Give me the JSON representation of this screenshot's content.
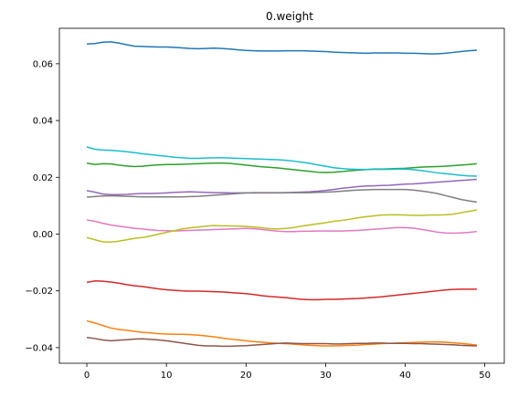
{
  "chart_data": {
    "type": "line",
    "title": "0.weight",
    "xlabel": "",
    "ylabel": "",
    "xlim": [
      -3.45,
      52.45
    ],
    "ylim": [
      -0.0455,
      0.0725
    ],
    "xticks": [
      0,
      10,
      20,
      30,
      40,
      50
    ],
    "yticks": [
      -0.04,
      -0.02,
      0.0,
      0.02,
      0.04,
      0.06
    ],
    "ytick_labels": [
      "−0.04",
      "−0.02",
      "0.00",
      "0.02",
      "0.04",
      "0.06"
    ],
    "grid": false,
    "legend": "none",
    "x": [
      0,
      1,
      2,
      3,
      4,
      5,
      6,
      7,
      8,
      9,
      10,
      11,
      12,
      13,
      14,
      15,
      16,
      17,
      18,
      19,
      20,
      21,
      22,
      23,
      24,
      25,
      26,
      27,
      28,
      29,
      30,
      31,
      32,
      33,
      34,
      35,
      36,
      37,
      38,
      39,
      40,
      41,
      42,
      43,
      44,
      45,
      46,
      47,
      48,
      49
    ],
    "series": [
      {
        "color": "#1f77b4",
        "values": [
          0.067,
          0.0671,
          0.0676,
          0.0677,
          0.0673,
          0.0667,
          0.0662,
          0.0661,
          0.066,
          0.0659,
          0.0659,
          0.0658,
          0.0656,
          0.0654,
          0.0653,
          0.0654,
          0.0655,
          0.0654,
          0.0652,
          0.0649,
          0.0647,
          0.0646,
          0.0645,
          0.0645,
          0.0645,
          0.0646,
          0.0646,
          0.0646,
          0.0645,
          0.0644,
          0.0643,
          0.0641,
          0.064,
          0.0639,
          0.0638,
          0.0637,
          0.0638,
          0.0638,
          0.0638,
          0.0638,
          0.0637,
          0.0637,
          0.0636,
          0.0635,
          0.0635,
          0.0637,
          0.064,
          0.0643,
          0.0646,
          0.0648
        ]
      },
      {
        "color": "#ff7f0e",
        "values": [
          -0.0306,
          -0.0313,
          -0.0322,
          -0.0331,
          -0.0336,
          -0.0339,
          -0.0343,
          -0.0346,
          -0.0348,
          -0.0351,
          -0.0352,
          -0.0353,
          -0.0353,
          -0.0354,
          -0.0356,
          -0.0359,
          -0.0362,
          -0.0366,
          -0.037,
          -0.0373,
          -0.0376,
          -0.0379,
          -0.0381,
          -0.0383,
          -0.0385,
          -0.0386,
          -0.0388,
          -0.039,
          -0.0392,
          -0.0393,
          -0.0394,
          -0.0394,
          -0.0393,
          -0.0392,
          -0.0391,
          -0.0389,
          -0.0388,
          -0.0386,
          -0.0385,
          -0.0384,
          -0.0383,
          -0.0382,
          -0.0381,
          -0.038,
          -0.038,
          -0.0381,
          -0.0383,
          -0.0385,
          -0.0388,
          -0.0391
        ]
      },
      {
        "color": "#2ca02c",
        "values": [
          0.025,
          0.0245,
          0.0248,
          0.0247,
          0.0243,
          0.024,
          0.0238,
          0.0239,
          0.0242,
          0.0244,
          0.0245,
          0.0245,
          0.0246,
          0.0247,
          0.0248,
          0.0249,
          0.025,
          0.025,
          0.0249,
          0.0246,
          0.0243,
          0.024,
          0.0237,
          0.0235,
          0.0233,
          0.023,
          0.0227,
          0.0224,
          0.0221,
          0.0218,
          0.0217,
          0.0218,
          0.022,
          0.0223,
          0.0225,
          0.0227,
          0.0229,
          0.0229,
          0.023,
          0.0231,
          0.0232,
          0.0234,
          0.0236,
          0.0237,
          0.0238,
          0.0239,
          0.0241,
          0.0243,
          0.0245,
          0.0248
        ]
      },
      {
        "color": "#d62728",
        "values": [
          -0.017,
          -0.0165,
          -0.0166,
          -0.0169,
          -0.0173,
          -0.0178,
          -0.0182,
          -0.0185,
          -0.0189,
          -0.0193,
          -0.0196,
          -0.0198,
          -0.02,
          -0.0201,
          -0.0201,
          -0.0202,
          -0.0203,
          -0.0204,
          -0.0206,
          -0.0208,
          -0.021,
          -0.0213,
          -0.0217,
          -0.022,
          -0.0222,
          -0.0224,
          -0.0227,
          -0.023,
          -0.0231,
          -0.0231,
          -0.023,
          -0.023,
          -0.0229,
          -0.0228,
          -0.0227,
          -0.0225,
          -0.0223,
          -0.0221,
          -0.0218,
          -0.0215,
          -0.0212,
          -0.0209,
          -0.0206,
          -0.0203,
          -0.02,
          -0.0197,
          -0.0195,
          -0.0194,
          -0.0194,
          -0.0194
        ]
      },
      {
        "color": "#9467bd",
        "values": [
          0.0153,
          0.0148,
          0.0141,
          0.0139,
          0.0139,
          0.014,
          0.0142,
          0.0143,
          0.0143,
          0.0144,
          0.0145,
          0.0147,
          0.0148,
          0.0149,
          0.0148,
          0.0147,
          0.0146,
          0.0146,
          0.0145,
          0.0145,
          0.0145,
          0.0145,
          0.0145,
          0.0145,
          0.0145,
          0.0146,
          0.0147,
          0.0148,
          0.0149,
          0.0151,
          0.0154,
          0.0157,
          0.0161,
          0.0164,
          0.0167,
          0.0169,
          0.017,
          0.0171,
          0.0172,
          0.0174,
          0.0176,
          0.0177,
          0.0179,
          0.0181,
          0.0183,
          0.0185,
          0.0187,
          0.0189,
          0.0191,
          0.0193
        ]
      },
      {
        "color": "#8c564b",
        "values": [
          -0.0364,
          -0.0368,
          -0.0373,
          -0.0376,
          -0.0374,
          -0.0372,
          -0.037,
          -0.0369,
          -0.0371,
          -0.0373,
          -0.0376,
          -0.038,
          -0.0384,
          -0.0388,
          -0.0392,
          -0.0394,
          -0.0394,
          -0.0395,
          -0.0395,
          -0.0394,
          -0.0393,
          -0.0391,
          -0.0389,
          -0.0387,
          -0.0385,
          -0.0384,
          -0.0385,
          -0.0386,
          -0.0386,
          -0.0386,
          -0.0386,
          -0.0387,
          -0.0387,
          -0.0386,
          -0.0385,
          -0.0385,
          -0.0384,
          -0.0384,
          -0.0385,
          -0.0385,
          -0.0385,
          -0.0386,
          -0.0386,
          -0.0387,
          -0.0388,
          -0.0389,
          -0.039,
          -0.0392,
          -0.0393,
          -0.0394
        ]
      },
      {
        "color": "#e377c2",
        "values": [
          0.005,
          0.0045,
          0.0038,
          0.0032,
          0.0028,
          0.0024,
          0.002,
          0.0018,
          0.0015,
          0.0013,
          0.0012,
          0.0011,
          0.0012,
          0.0013,
          0.0014,
          0.0015,
          0.0016,
          0.0017,
          0.0018,
          0.0019,
          0.002,
          0.0019,
          0.0016,
          0.0013,
          0.001,
          0.0009,
          0.0009,
          0.001,
          0.001,
          0.0011,
          0.0011,
          0.0011,
          0.0011,
          0.0012,
          0.0013,
          0.0015,
          0.0017,
          0.0019,
          0.0021,
          0.0023,
          0.0023,
          0.0021,
          0.0017,
          0.0012,
          0.0007,
          0.0004,
          0.0003,
          0.0004,
          0.0006,
          0.0009
        ]
      },
      {
        "color": "#7f7f7f",
        "values": [
          0.013,
          0.0132,
          0.0134,
          0.0135,
          0.0134,
          0.0133,
          0.0132,
          0.0131,
          0.0131,
          0.0131,
          0.0131,
          0.0131,
          0.0131,
          0.0132,
          0.0133,
          0.0135,
          0.0137,
          0.0139,
          0.0141,
          0.0143,
          0.0145,
          0.0146,
          0.0146,
          0.0146,
          0.0146,
          0.0146,
          0.0146,
          0.0146,
          0.0146,
          0.0147,
          0.0148,
          0.0149,
          0.0151,
          0.0153,
          0.0155,
          0.0156,
          0.0157,
          0.0157,
          0.0157,
          0.0157,
          0.0157,
          0.0155,
          0.0152,
          0.0148,
          0.0143,
          0.0136,
          0.0129,
          0.0122,
          0.0117,
          0.0113
        ]
      },
      {
        "color": "#bcbd22",
        "values": [
          -0.0012,
          -0.002,
          -0.0027,
          -0.0028,
          -0.0025,
          -0.002,
          -0.0015,
          -0.0012,
          -0.0007,
          0.0,
          0.0006,
          0.0012,
          0.0018,
          0.0022,
          0.0025,
          0.0028,
          0.003,
          0.0029,
          0.0029,
          0.0028,
          0.0027,
          0.0025,
          0.0022,
          0.0019,
          0.0018,
          0.002,
          0.0023,
          0.0028,
          0.0032,
          0.0036,
          0.004,
          0.0045,
          0.0048,
          0.0052,
          0.0057,
          0.0061,
          0.0064,
          0.0067,
          0.0068,
          0.0068,
          0.0067,
          0.0066,
          0.0066,
          0.0067,
          0.0067,
          0.0068,
          0.007,
          0.0075,
          0.008,
          0.0085
        ]
      },
      {
        "color": "#17becf",
        "values": [
          0.0307,
          0.0299,
          0.0296,
          0.0295,
          0.0293,
          0.029,
          0.0287,
          0.0283,
          0.028,
          0.0277,
          0.0274,
          0.0271,
          0.0269,
          0.0267,
          0.0267,
          0.0268,
          0.0269,
          0.0269,
          0.0268,
          0.0267,
          0.0266,
          0.0265,
          0.0264,
          0.0263,
          0.0262,
          0.026,
          0.0257,
          0.0253,
          0.0249,
          0.0244,
          0.0239,
          0.0234,
          0.0231,
          0.0229,
          0.0228,
          0.0228,
          0.0228,
          0.0228,
          0.0228,
          0.0229,
          0.0229,
          0.0227,
          0.0224,
          0.022,
          0.0216,
          0.0213,
          0.021,
          0.0207,
          0.0205,
          0.0204
        ]
      }
    ]
  }
}
